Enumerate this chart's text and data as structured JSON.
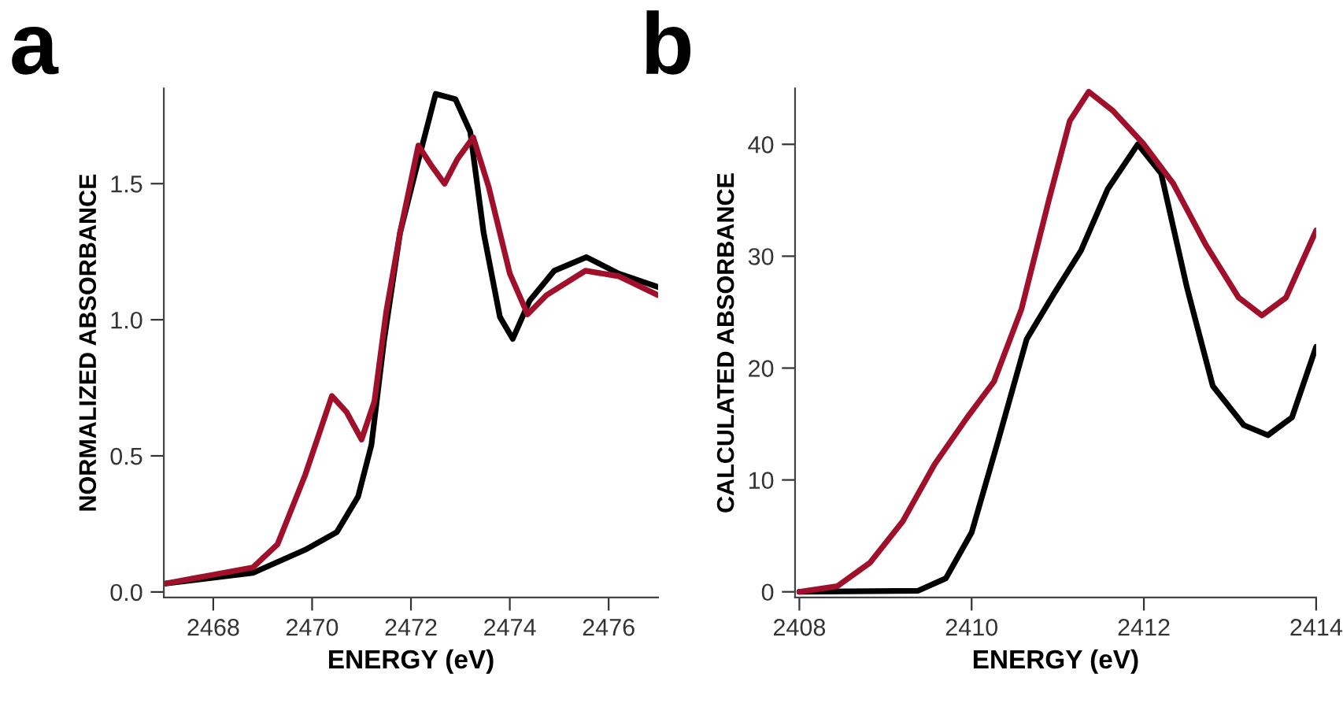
{
  "chart_data": [
    {
      "type": "line",
      "title": "a",
      "xlabel": "ENERGY (eV)",
      "ylabel": "NORMALIZED ABSORBANCE",
      "xlim": [
        2467,
        2477
      ],
      "ylim": [
        -0.02,
        1.85
      ],
      "xticks": [
        2468,
        2470,
        2472,
        2474,
        2476
      ],
      "yticks": [
        {
          "value": 0,
          "label": "0.0"
        },
        0.5,
        {
          "value": 1,
          "label": "1.0"
        },
        1.5
      ],
      "grid": false,
      "legend": false,
      "marker": "none",
      "line_style": "solid",
      "series": [
        {
          "color": "#000000",
          "x": [
            2467.0,
            2468.8,
            2469.86,
            2470.5,
            2470.93,
            2471.2,
            2471.46,
            2471.78,
            2472.1,
            2472.5,
            2472.9,
            2473.2,
            2473.47,
            2473.8,
            2474.06,
            2474.4,
            2474.9,
            2475.55,
            2476.2,
            2477.0
          ],
          "values": [
            0.03,
            0.07,
            0.155,
            0.22,
            0.35,
            0.54,
            0.93,
            1.32,
            1.55,
            1.83,
            1.81,
            1.69,
            1.32,
            1.01,
            0.93,
            1.07,
            1.18,
            1.23,
            1.17,
            1.12
          ]
        },
        {
          "color": "#a0102a",
          "x": [
            2467.0,
            2468.8,
            2469.3,
            2469.86,
            2470.4,
            2470.7,
            2471.0,
            2471.26,
            2471.5,
            2471.78,
            2472.15,
            2472.4,
            2472.68,
            2472.94,
            2473.26,
            2473.57,
            2474.0,
            2474.36,
            2474.74,
            2475.53,
            2476.2,
            2477.0
          ],
          "values": [
            0.03,
            0.09,
            0.175,
            0.43,
            0.72,
            0.66,
            0.56,
            0.7,
            1.03,
            1.32,
            1.64,
            1.57,
            1.5,
            1.59,
            1.67,
            1.49,
            1.17,
            1.02,
            1.09,
            1.18,
            1.16,
            1.09
          ]
        }
      ]
    },
    {
      "type": "line",
      "title": "b",
      "xlabel": "ENERGY (eV)",
      "ylabel": "CALCULATED ABSORBANCE",
      "xlim": [
        2407.95,
        2414
      ],
      "ylim": [
        -0.5,
        45
      ],
      "xticks": [
        2408,
        2410,
        2412,
        2414
      ],
      "yticks": [
        0,
        10,
        20,
        30,
        40
      ],
      "grid": false,
      "legend": false,
      "marker": "none",
      "line_style": "solid",
      "series": [
        {
          "color": "#000000",
          "x": [
            2408.0,
            2409.38,
            2409.7,
            2410.0,
            2410.3,
            2410.64,
            2410.96,
            2411.27,
            2411.58,
            2411.93,
            2412.2,
            2412.5,
            2412.8,
            2413.16,
            2413.44,
            2413.72,
            2414.0
          ],
          "values": [
            0,
            0.1,
            1.2,
            5.3,
            13.3,
            22.6,
            26.7,
            30.5,
            36,
            40,
            37.4,
            27.2,
            18.4,
            14.9,
            14,
            15.6,
            21.9
          ]
        },
        {
          "color": "#a0102a",
          "x": [
            2408.0,
            2408.44,
            2408.82,
            2409.2,
            2409.57,
            2409.95,
            2410.26,
            2410.58,
            2410.9,
            2411.14,
            2411.36,
            2411.64,
            2412.0,
            2412.34,
            2412.72,
            2413.1,
            2413.37,
            2413.65,
            2414.0
          ],
          "values": [
            0,
            0.5,
            2.6,
            6.3,
            11.4,
            15.6,
            18.8,
            25.3,
            35.1,
            42.1,
            44.7,
            43,
            40,
            36.5,
            31,
            26.3,
            24.7,
            26.3,
            32.3
          ]
        }
      ]
    }
  ]
}
